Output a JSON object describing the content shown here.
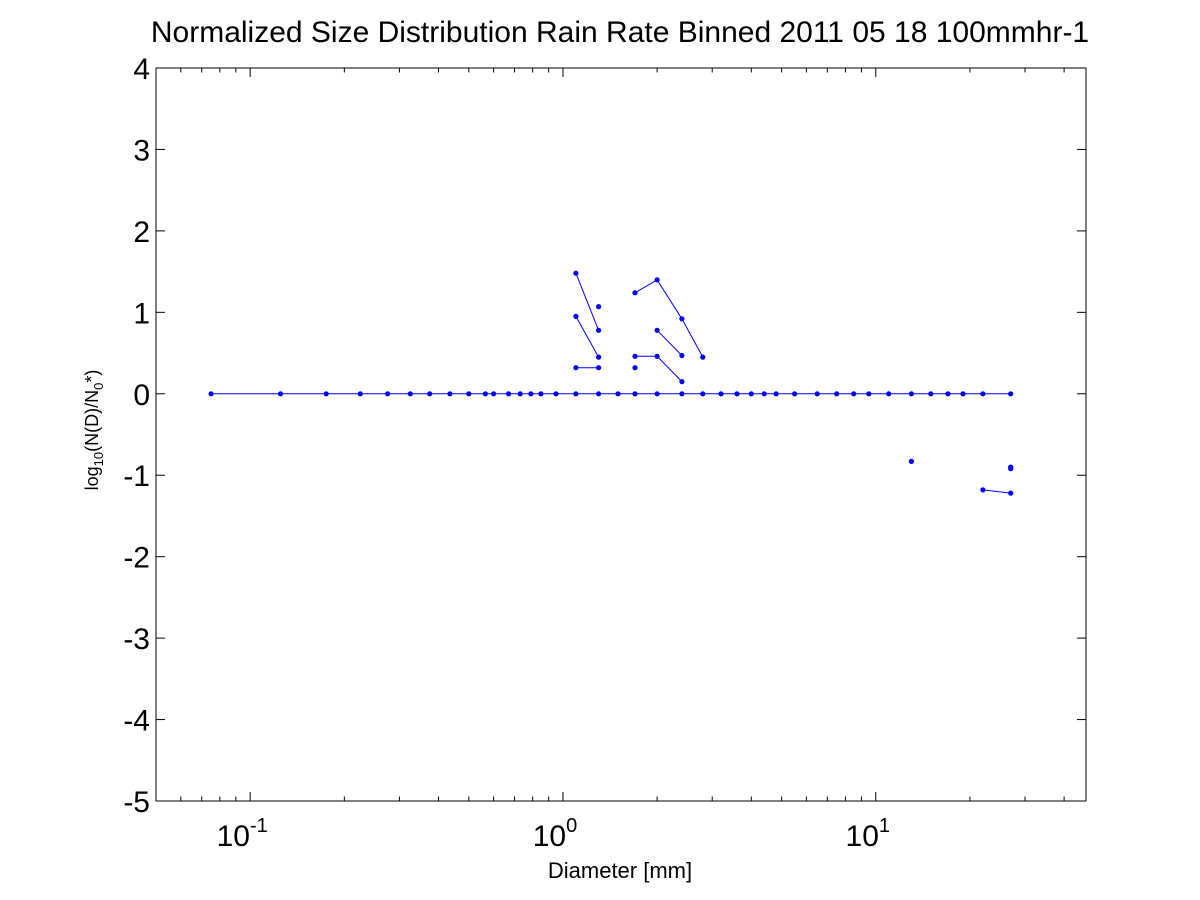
{
  "chart_data": {
    "type": "line",
    "title": "Normalized Size Distribution Rain Rate Binned 2011 05 18 100mmhr-1",
    "xlabel": "Diameter [mm]",
    "ylabel": {
      "prefix": "log",
      "sub1": "10",
      "mid": "(N(D)/N",
      "sub2": "0",
      "suffix": "*)"
    },
    "x_scale": "log",
    "xlim": [
      0.05,
      47
    ],
    "ylim": [
      -5,
      4
    ],
    "grid": false,
    "yticks": [
      -5,
      -4,
      -3,
      -2,
      -1,
      0,
      1,
      2,
      3,
      4
    ],
    "xticks": [
      {
        "value": 0.1,
        "base": "10",
        "exp": "-1"
      },
      {
        "value": 1,
        "base": "10",
        "exp": "0"
      },
      {
        "value": 10,
        "base": "10",
        "exp": "1"
      }
    ],
    "color": "#0000ff",
    "series": [
      {
        "x": [
          0.075,
          0.125,
          0.175,
          0.225,
          0.275,
          0.325,
          0.375,
          0.435,
          0.5,
          0.565,
          0.6,
          0.67,
          0.73,
          0.79,
          0.85,
          0.95,
          1.1,
          1.3,
          1.5,
          1.7,
          2.0,
          2.4,
          2.8,
          3.2,
          3.6,
          4.0,
          4.4,
          4.8,
          5.5,
          6.5,
          7.5,
          8.5,
          9.5,
          11.0,
          13.0,
          15.0,
          17.0,
          19.0,
          22.0,
          27.0
        ],
        "y": [
          0,
          0,
          0,
          0,
          0,
          0,
          0,
          0,
          0,
          0,
          0,
          0,
          0,
          0,
          0,
          0,
          0,
          0,
          0,
          0,
          0,
          0,
          0,
          0,
          0,
          0,
          0,
          0,
          0,
          0,
          0,
          0,
          0,
          0,
          0,
          0,
          0,
          0,
          0,
          0
        ]
      },
      {
        "x": [
          1.1,
          1.3
        ],
        "y": [
          1.48,
          0.78
        ]
      },
      {
        "x": [
          1.1,
          1.3
        ],
        "y": [
          0.95,
          0.45
        ]
      },
      {
        "x": [
          1.1,
          1.3
        ],
        "y": [
          0.32,
          0.32
        ]
      },
      {
        "x": [
          1.3
        ],
        "y": [
          1.07
        ]
      },
      {
        "x": [
          1.7,
          2.0,
          2.4,
          2.8
        ],
        "y": [
          1.24,
          1.4,
          0.92,
          0.45
        ]
      },
      {
        "x": [
          2.0,
          2.4
        ],
        "y": [
          0.78,
          0.47
        ]
      },
      {
        "x": [
          1.7,
          2.0,
          2.4
        ],
        "y": [
          0.46,
          0.46,
          0.15
        ]
      },
      {
        "x": [
          1.7
        ],
        "y": [
          0.32
        ]
      },
      {
        "x": [
          13.0
        ],
        "y": [
          -0.83
        ]
      },
      {
        "x": [
          22.0,
          27.0
        ],
        "y": [
          -1.18,
          -1.22
        ]
      },
      {
        "x": [
          27.0
        ],
        "y": [
          -0.9
        ]
      },
      {
        "x": [
          27.0
        ],
        "y": [
          -0.92
        ]
      }
    ]
  }
}
